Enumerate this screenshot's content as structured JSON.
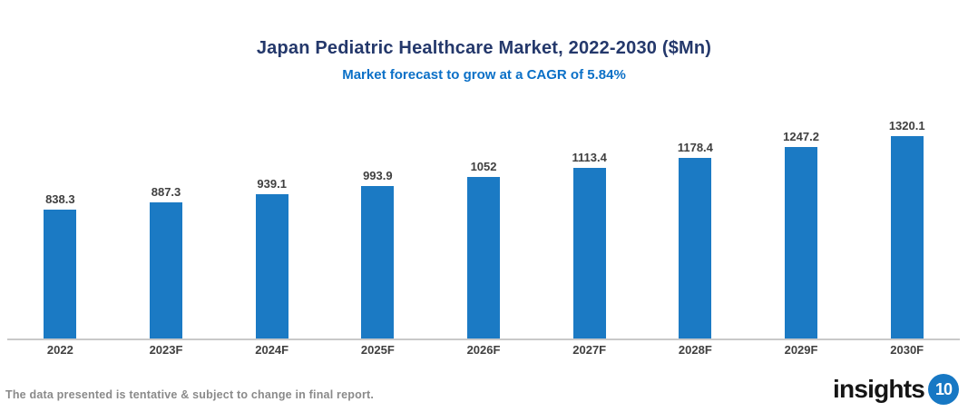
{
  "header": {
    "title": "Japan Pediatric Healthcare Market, 2022-2030 ($Mn)",
    "subtitle": "Market forecast to grow at a CAGR of 5.84%"
  },
  "chart_data": {
    "type": "bar",
    "title": "Japan Pediatric Healthcare Market, 2022-2030 ($Mn)",
    "subtitle": "Market forecast to grow at a CAGR of 5.84%",
    "categories": [
      "2022",
      "2023F",
      "2024F",
      "2025F",
      "2026F",
      "2027F",
      "2028F",
      "2029F",
      "2030F"
    ],
    "values": [
      838.3,
      887.3,
      939.1,
      993.9,
      1052,
      1113.4,
      1178.4,
      1247.2,
      1320.1
    ],
    "value_labels": [
      "838.3",
      "887.3",
      "939.1",
      "993.9",
      "1052",
      "1113.4",
      "1178.4",
      "1247.2",
      "1320.1"
    ],
    "xlabel": "",
    "ylabel": "",
    "ylim": [
      0,
      1400
    ],
    "grid": false,
    "legend": false,
    "bar_color": "#1B7AC4"
  },
  "footer": {
    "disclaimer": "The data presented is tentative & subject to change in final report."
  },
  "logo": {
    "text": "insights",
    "badge": "10"
  },
  "colors": {
    "title": "#24386B",
    "subtitle": "#0B70C7",
    "bar": "#1B7AC4",
    "data_label": "#404040",
    "axis_line": "#C9C9C9",
    "footer_text": "#8A8A8A",
    "logo_badge": "#1778C4"
  }
}
